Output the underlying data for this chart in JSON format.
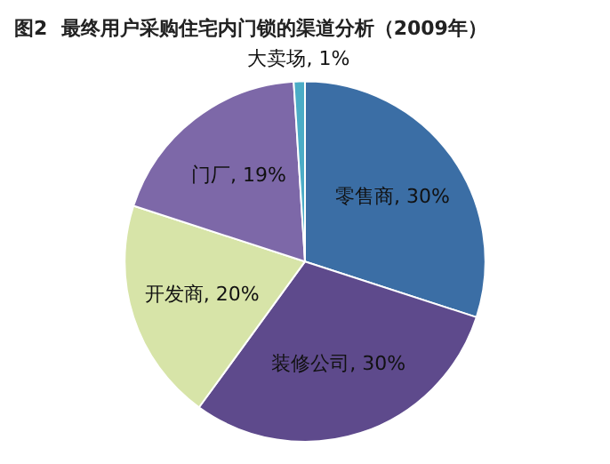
{
  "chart_data": {
    "type": "pie",
    "title": "图2  最终用户采购住宅内门锁的渠道分析（2009年）",
    "categories": [
      "零售商",
      "装修公司",
      "开发商",
      "门厂",
      "大卖场"
    ],
    "values": [
      30,
      30,
      20,
      19,
      1
    ],
    "colors": [
      "#3b6ea5",
      "#5e4a8c",
      "#d7e4a8",
      "#7d68a8",
      "#4bacc6"
    ],
    "value_labels": [
      ", 30%",
      ", 30%",
      ", 20%",
      ", 19%",
      ", 1%"
    ],
    "legend": false
  }
}
